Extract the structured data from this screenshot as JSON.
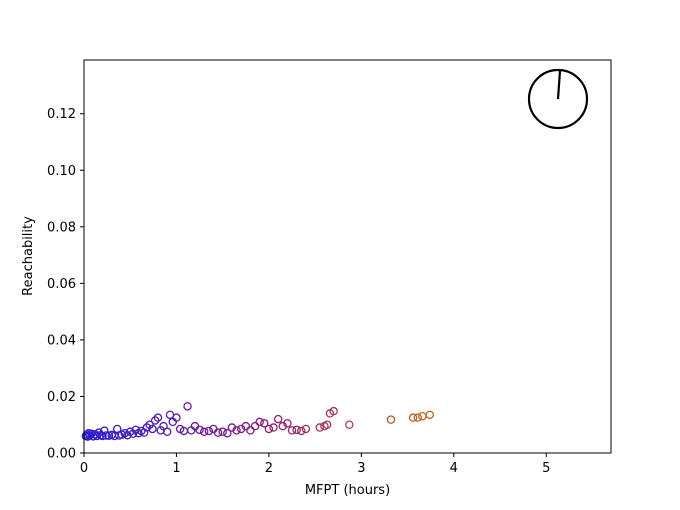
{
  "chart_data": {
    "type": "scatter",
    "title": "",
    "xlabel": "MFPT (hours)",
    "ylabel": "Reachability",
    "xlim": [
      0,
      5.7
    ],
    "ylim": [
      0,
      0.139
    ],
    "xticks": [
      0,
      1,
      2,
      3,
      4,
      5
    ],
    "xtick_labels": [
      "0",
      "1",
      "2",
      "3",
      "4",
      "5"
    ],
    "yticks": [
      0.0,
      0.02,
      0.04,
      0.06,
      0.08,
      0.1,
      0.12
    ],
    "ytick_labels": [
      "0.00",
      "0.02",
      "0.04",
      "0.06",
      "0.08",
      "0.10",
      "0.12"
    ],
    "grid": false,
    "marker": "hollow-circle",
    "color_scale": {
      "low": "#2a1fd0",
      "mid": "#8a1a7a",
      "high": "#c26a1a",
      "min_x": 0,
      "max_x": 3.8
    },
    "points": [
      {
        "x": 0.02,
        "y": 0.006
      },
      {
        "x": 0.03,
        "y": 0.0065
      },
      {
        "x": 0.04,
        "y": 0.0058
      },
      {
        "x": 0.05,
        "y": 0.007
      },
      {
        "x": 0.06,
        "y": 0.0062
      },
      {
        "x": 0.08,
        "y": 0.0068
      },
      {
        "x": 0.1,
        "y": 0.0059
      },
      {
        "x": 0.12,
        "y": 0.0066
      },
      {
        "x": 0.14,
        "y": 0.006
      },
      {
        "x": 0.16,
        "y": 0.0072
      },
      {
        "x": 0.18,
        "y": 0.0063
      },
      {
        "x": 0.2,
        "y": 0.006
      },
      {
        "x": 0.22,
        "y": 0.0079
      },
      {
        "x": 0.24,
        "y": 0.0062
      },
      {
        "x": 0.27,
        "y": 0.0061
      },
      {
        "x": 0.3,
        "y": 0.0064
      },
      {
        "x": 0.33,
        "y": 0.006
      },
      {
        "x": 0.36,
        "y": 0.0085
      },
      {
        "x": 0.38,
        "y": 0.0062
      },
      {
        "x": 0.41,
        "y": 0.0065
      },
      {
        "x": 0.44,
        "y": 0.007
      },
      {
        "x": 0.47,
        "y": 0.0063
      },
      {
        "x": 0.5,
        "y": 0.0075
      },
      {
        "x": 0.53,
        "y": 0.0068
      },
      {
        "x": 0.56,
        "y": 0.0082
      },
      {
        "x": 0.59,
        "y": 0.007
      },
      {
        "x": 0.62,
        "y": 0.0078
      },
      {
        "x": 0.65,
        "y": 0.0072
      },
      {
        "x": 0.68,
        "y": 0.009
      },
      {
        "x": 0.71,
        "y": 0.01
      },
      {
        "x": 0.74,
        "y": 0.0085
      },
      {
        "x": 0.77,
        "y": 0.0115
      },
      {
        "x": 0.8,
        "y": 0.0125
      },
      {
        "x": 0.83,
        "y": 0.008
      },
      {
        "x": 0.86,
        "y": 0.0095
      },
      {
        "x": 0.9,
        "y": 0.0075
      },
      {
        "x": 0.93,
        "y": 0.0135
      },
      {
        "x": 0.96,
        "y": 0.011
      },
      {
        "x": 1.0,
        "y": 0.0125
      },
      {
        "x": 1.04,
        "y": 0.0085
      },
      {
        "x": 1.08,
        "y": 0.0078
      },
      {
        "x": 1.12,
        "y": 0.0165
      },
      {
        "x": 1.16,
        "y": 0.008
      },
      {
        "x": 1.2,
        "y": 0.0095
      },
      {
        "x": 1.25,
        "y": 0.0082
      },
      {
        "x": 1.3,
        "y": 0.0075
      },
      {
        "x": 1.35,
        "y": 0.0078
      },
      {
        "x": 1.4,
        "y": 0.0085
      },
      {
        "x": 1.45,
        "y": 0.0072
      },
      {
        "x": 1.5,
        "y": 0.0075
      },
      {
        "x": 1.55,
        "y": 0.007
      },
      {
        "x": 1.6,
        "y": 0.009
      },
      {
        "x": 1.65,
        "y": 0.008
      },
      {
        "x": 1.7,
        "y": 0.0085
      },
      {
        "x": 1.75,
        "y": 0.0095
      },
      {
        "x": 1.8,
        "y": 0.008
      },
      {
        "x": 1.85,
        "y": 0.0095
      },
      {
        "x": 1.9,
        "y": 0.011
      },
      {
        "x": 1.95,
        "y": 0.0105
      },
      {
        "x": 2.0,
        "y": 0.0085
      },
      {
        "x": 2.05,
        "y": 0.009
      },
      {
        "x": 2.1,
        "y": 0.012
      },
      {
        "x": 2.15,
        "y": 0.0095
      },
      {
        "x": 2.2,
        "y": 0.0105
      },
      {
        "x": 2.25,
        "y": 0.008
      },
      {
        "x": 2.3,
        "y": 0.0082
      },
      {
        "x": 2.35,
        "y": 0.0078
      },
      {
        "x": 2.4,
        "y": 0.0085
      },
      {
        "x": 2.55,
        "y": 0.009
      },
      {
        "x": 2.6,
        "y": 0.0095
      },
      {
        "x": 2.63,
        "y": 0.01
      },
      {
        "x": 2.66,
        "y": 0.014
      },
      {
        "x": 2.7,
        "y": 0.0148
      },
      {
        "x": 2.87,
        "y": 0.01
      },
      {
        "x": 3.32,
        "y": 0.0118
      },
      {
        "x": 3.56,
        "y": 0.0125
      },
      {
        "x": 3.61,
        "y": 0.0125
      },
      {
        "x": 3.66,
        "y": 0.013
      },
      {
        "x": 3.74,
        "y": 0.0135
      }
    ]
  }
}
